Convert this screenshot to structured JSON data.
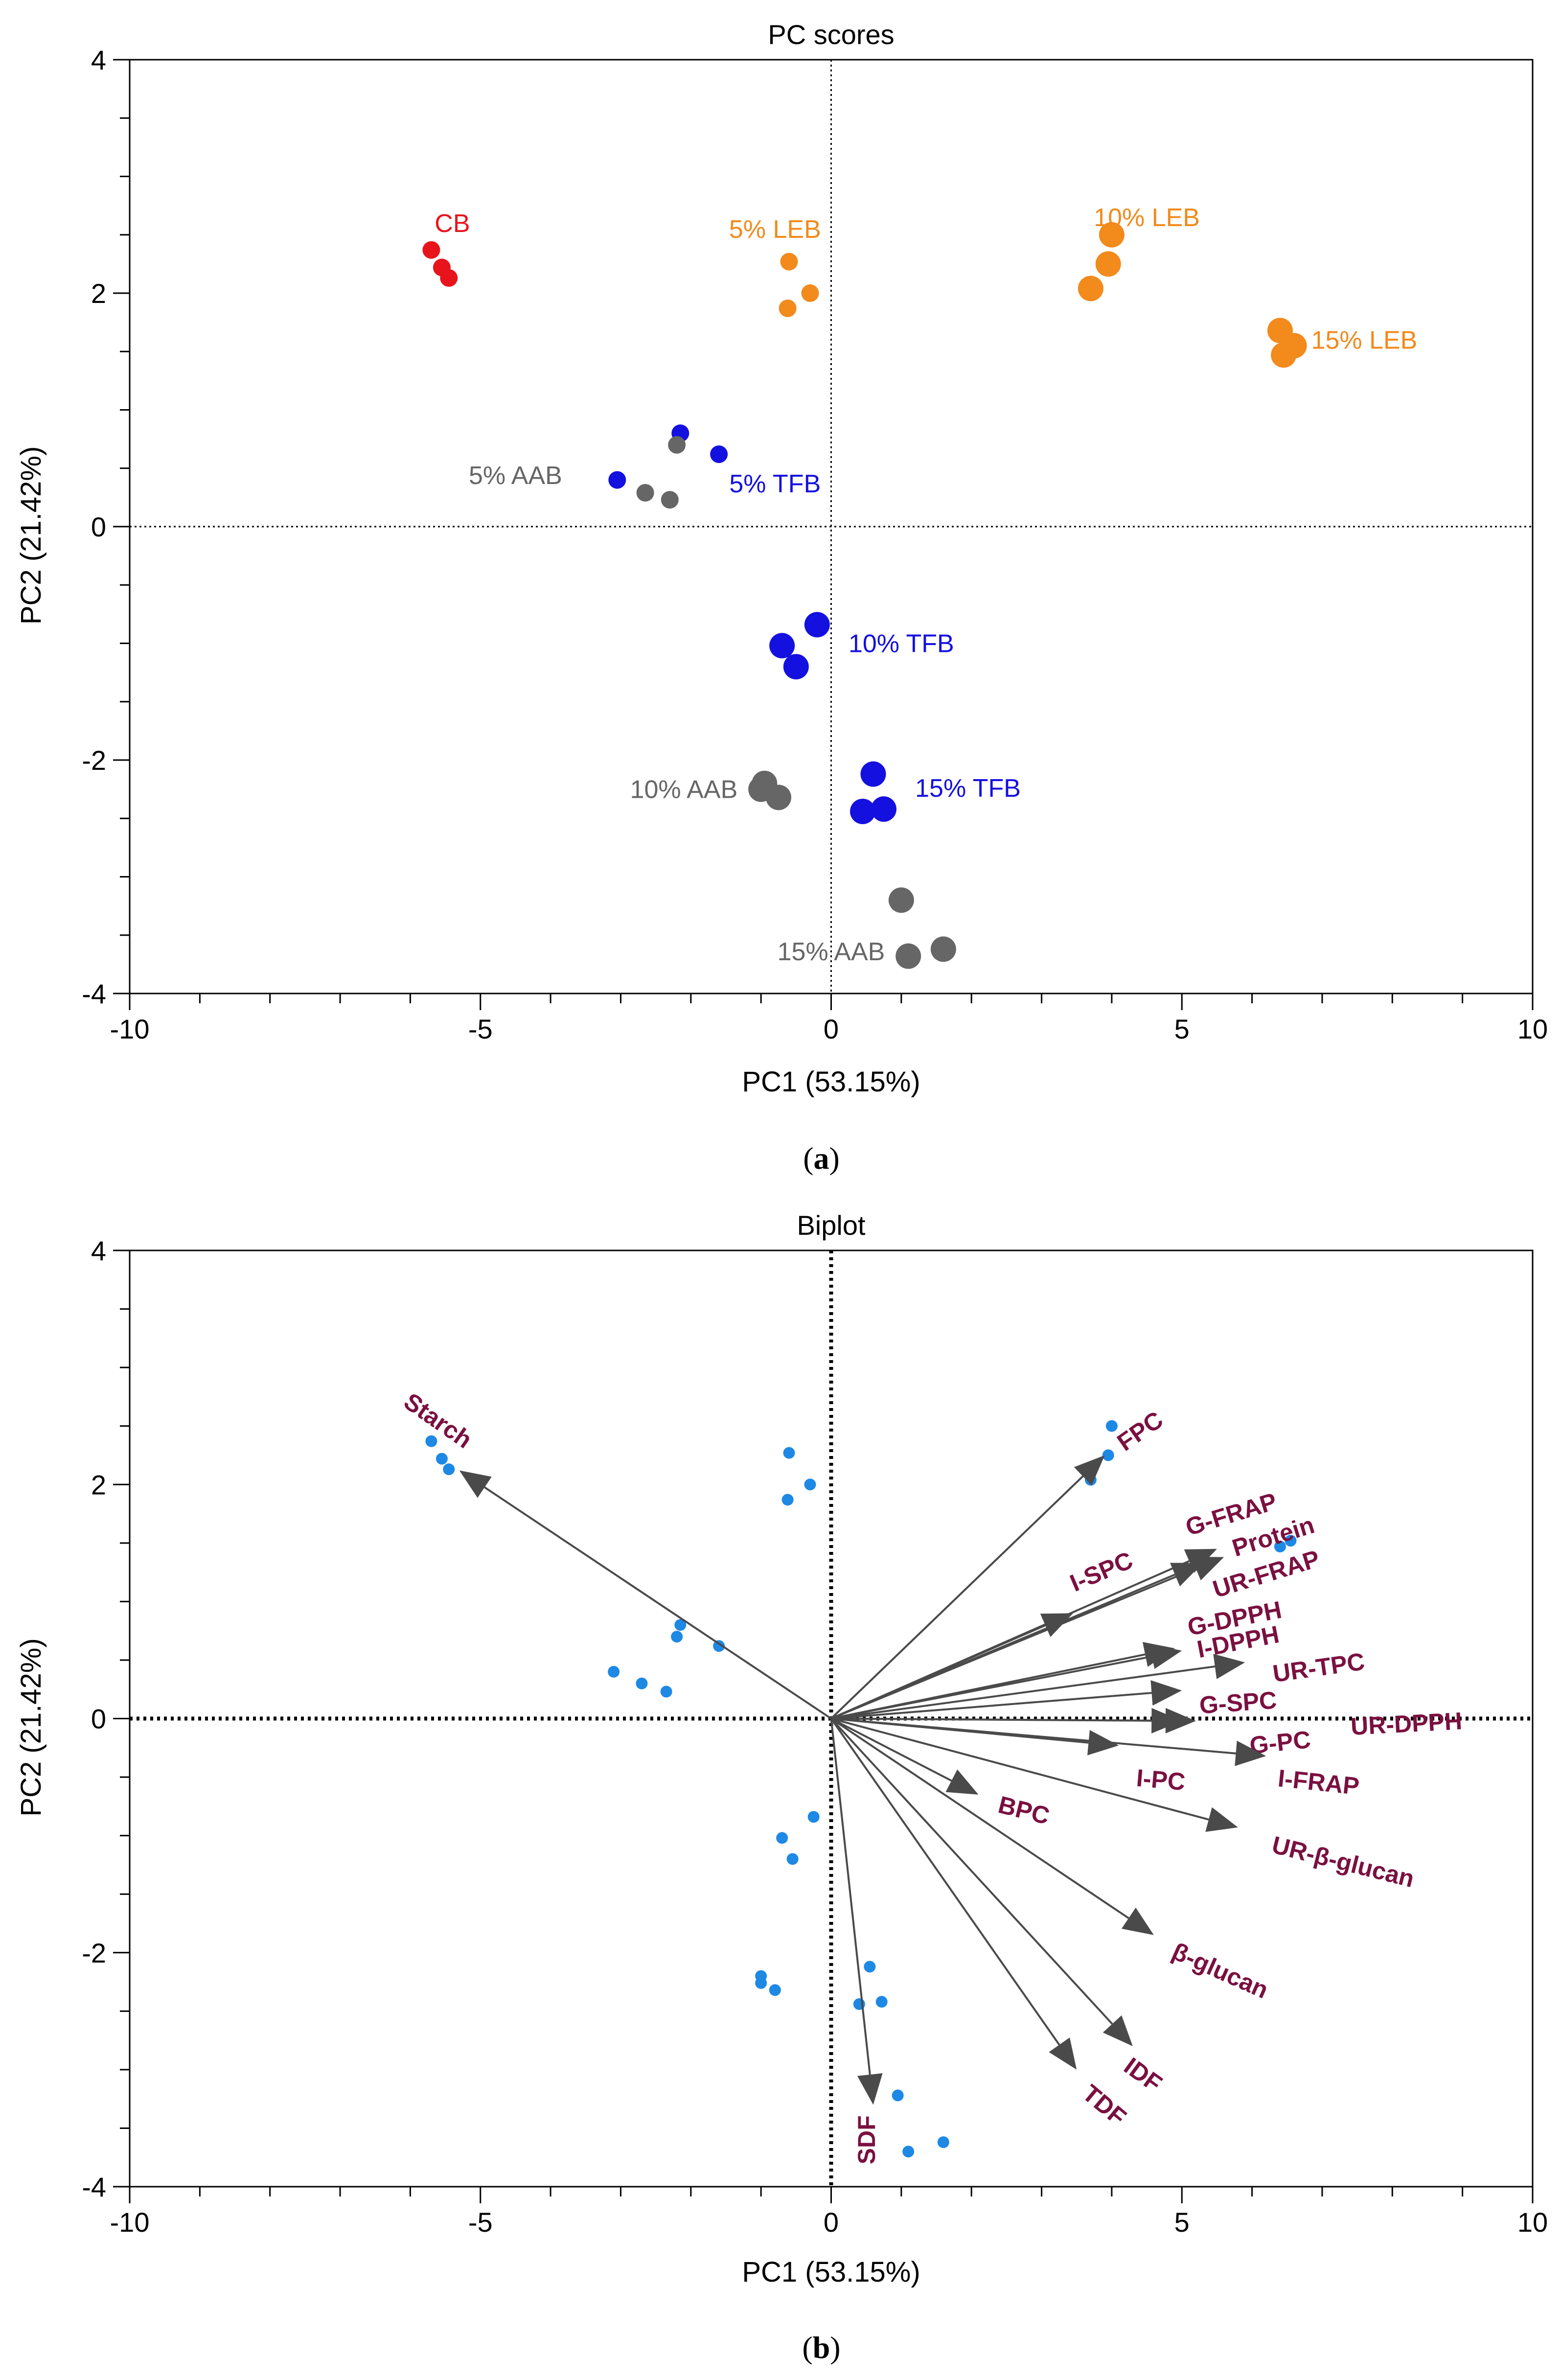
{
  "chart_data": [
    {
      "type": "scatter",
      "panel_label": "(a)",
      "panel_label_parts": [
        "(",
        "a",
        ")"
      ],
      "title": "PC scores",
      "xlabel": "PC1 (53.15%)",
      "ylabel": "PC2 (21.42%)",
      "xlim": [
        -10,
        10
      ],
      "ylim": [
        -4,
        4
      ],
      "x_ticks": [
        -10,
        -5,
        0,
        5,
        10
      ],
      "y_ticks": [
        -4,
        -2,
        0,
        2,
        4
      ],
      "x_tick_labels": [
        "-10",
        "-5",
        "0",
        "5",
        "10"
      ],
      "y_tick_labels": [
        "-4",
        "-2",
        "0",
        "2",
        "4"
      ],
      "reference_lines": {
        "x": 0,
        "y": 0,
        "style": "dotted"
      },
      "groups": [
        {
          "name": "CB",
          "color": "#e8141c",
          "marker_size": "small",
          "label_anchor": [
            -5.4,
            2.6
          ],
          "points": [
            [
              -5.7,
              2.37
            ],
            [
              -5.55,
              2.22
            ],
            [
              -5.45,
              2.13
            ]
          ]
        },
        {
          "name": "5% LEB",
          "color": "#f28a1c",
          "marker_size": "small",
          "label_anchor": [
            -0.8,
            2.55
          ],
          "points": [
            [
              -0.6,
              2.27
            ],
            [
              -0.3,
              2.0
            ],
            [
              -0.62,
              1.87
            ]
          ]
        },
        {
          "name": "10% LEB",
          "color": "#f28a1c",
          "marker_size": "large",
          "label_anchor": [
            4.5,
            2.65
          ],
          "points": [
            [
              4.0,
              2.5
            ],
            [
              3.95,
              2.25
            ],
            [
              3.7,
              2.04
            ]
          ]
        },
        {
          "name": "15% LEB",
          "color": "#f28a1c",
          "marker_size": "large",
          "label_anchor": [
            7.6,
            1.6
          ],
          "points": [
            [
              6.4,
              1.68
            ],
            [
              6.6,
              1.55
            ],
            [
              6.45,
              1.47
            ]
          ]
        },
        {
          "name": "5% TFB",
          "color": "#1410e0",
          "marker_size": "small",
          "label_anchor": [
            -0.8,
            0.37
          ],
          "points": [
            [
              -2.15,
              0.8
            ],
            [
              -1.6,
              0.62
            ],
            [
              -3.05,
              0.4
            ]
          ]
        },
        {
          "name": "5% AAB",
          "color": "#666666",
          "marker_size": "small",
          "label_anchor": [
            -4.5,
            0.44
          ],
          "points": [
            [
              -2.2,
              0.7
            ],
            [
              -2.65,
              0.29
            ],
            [
              -2.3,
              0.23
            ]
          ]
        },
        {
          "name": "10% TFB",
          "color": "#1410e0",
          "marker_size": "large",
          "label_anchor": [
            1.0,
            -1.0
          ],
          "points": [
            [
              -0.2,
              -0.84
            ],
            [
              -0.7,
              -1.02
            ],
            [
              -0.5,
              -1.2
            ]
          ]
        },
        {
          "name": "10% AAB",
          "color": "#666666",
          "marker_size": "large",
          "label_anchor": [
            -2.1,
            -2.25
          ],
          "points": [
            [
              -0.95,
              -2.2
            ],
            [
              -1.0,
              -2.25
            ],
            [
              -0.75,
              -2.32
            ]
          ]
        },
        {
          "name": "15% TFB",
          "color": "#1410e0",
          "marker_size": "large",
          "label_anchor": [
            1.95,
            -2.24
          ],
          "points": [
            [
              0.6,
              -2.12
            ],
            [
              0.45,
              -2.44
            ],
            [
              0.75,
              -2.42
            ]
          ]
        },
        {
          "name": "15% AAB",
          "color": "#666666",
          "marker_size": "large",
          "label_anchor": [
            0.0,
            -3.64
          ],
          "points": [
            [
              1.0,
              -3.2
            ],
            [
              1.6,
              -3.62
            ],
            [
              1.1,
              -3.68
            ]
          ]
        }
      ]
    },
    {
      "type": "scatter",
      "subtype": "biplot",
      "panel_label": "(b)",
      "panel_label_parts": [
        "(",
        "b",
        ")"
      ],
      "title": "Biplot",
      "xlabel": "PC1 (53.15%)",
      "ylabel": "PC2 (21.42%)",
      "xlim": [
        -10,
        10
      ],
      "ylim": [
        -4,
        4
      ],
      "x_ticks": [
        -10,
        -5,
        0,
        5,
        10
      ],
      "y_ticks": [
        -4,
        -2,
        0,
        2,
        4
      ],
      "x_tick_labels": [
        "-10",
        "-5",
        "0",
        "5",
        "10"
      ],
      "y_tick_labels": [
        "-4",
        "-2",
        "0",
        "2",
        "4"
      ],
      "reference_lines": {
        "x": 0,
        "y": 0,
        "style": "dotted"
      },
      "point_color": "#1e88e5",
      "loading_label_color": "#7a1040",
      "arrow_color": "#4a4a4a",
      "points": [
        [
          -5.7,
          2.37
        ],
        [
          -5.55,
          2.22
        ],
        [
          -5.45,
          2.13
        ],
        [
          -0.6,
          2.27
        ],
        [
          -0.3,
          2.0
        ],
        [
          -0.62,
          1.87
        ],
        [
          4.0,
          2.5
        ],
        [
          3.95,
          2.25
        ],
        [
          3.7,
          2.04
        ],
        [
          6.4,
          1.47
        ],
        [
          6.55,
          1.52
        ],
        [
          -2.15,
          0.8
        ],
        [
          -2.2,
          0.7
        ],
        [
          -1.6,
          0.62
        ],
        [
          -3.1,
          0.4
        ],
        [
          -2.7,
          0.3
        ],
        [
          -2.35,
          0.23
        ],
        [
          -0.25,
          -0.84
        ],
        [
          -0.7,
          -1.02
        ],
        [
          -0.55,
          -1.2
        ],
        [
          -1.0,
          -2.2
        ],
        [
          -1.0,
          -2.26
        ],
        [
          -0.8,
          -2.32
        ],
        [
          0.55,
          -2.12
        ],
        [
          0.4,
          -2.44
        ],
        [
          0.72,
          -2.42
        ],
        [
          0.95,
          -3.22
        ],
        [
          1.6,
          -3.62
        ],
        [
          1.1,
          -3.7
        ]
      ],
      "loadings": [
        {
          "name": "Starch",
          "x": -5.3,
          "y": 2.12,
          "label_anchor": [
            -5.6,
            2.55
          ],
          "label_angle": 35
        },
        {
          "name": "FPC",
          "x": 3.9,
          "y": 2.25,
          "label_anchor": [
            4.4,
            2.46
          ],
          "label_angle": -35
        },
        {
          "name": "G-FRAP",
          "x": 5.5,
          "y": 1.45,
          "label_anchor": [
            5.7,
            1.75
          ],
          "label_angle": -17
        },
        {
          "name": "Protein",
          "x": 5.6,
          "y": 1.38,
          "label_anchor": [
            6.3,
            1.56
          ],
          "label_angle": -17
        },
        {
          "name": "UR-FRAP",
          "x": 5.3,
          "y": 1.33,
          "label_anchor": [
            6.2,
            1.24
          ],
          "label_angle": -17
        },
        {
          "name": "I-SPC",
          "x": 3.45,
          "y": 0.9,
          "label_anchor": [
            3.85,
            1.26
          ],
          "label_angle": -23
        },
        {
          "name": "G-DPPH",
          "x": 4.9,
          "y": 0.6,
          "label_anchor": [
            5.75,
            0.86
          ],
          "label_angle": -11
        },
        {
          "name": "I-DPPH",
          "x": 5.0,
          "y": 0.58,
          "label_anchor": [
            5.8,
            0.66
          ],
          "label_angle": -11
        },
        {
          "name": "UR-TPC",
          "x": 5.9,
          "y": 0.48,
          "label_anchor": [
            6.95,
            0.44
          ],
          "label_angle": -8
        },
        {
          "name": "G-SPC",
          "x": 5.0,
          "y": 0.24,
          "label_anchor": [
            5.8,
            0.14
          ],
          "label_angle": -4
        },
        {
          "name": "UR-DPPH",
          "x": 5.2,
          "y": -0.02,
          "label_anchor": [
            8.2,
            -0.04
          ],
          "label_angle": -3
        },
        {
          "name": "G-PC",
          "x": 5.0,
          "y": -0.02,
          "label_anchor": [
            6.4,
            -0.2
          ],
          "label_angle": -6
        },
        {
          "name": "I-PC",
          "x": 4.1,
          "y": -0.23,
          "label_anchor": [
            4.7,
            -0.52
          ],
          "label_angle": 5
        },
        {
          "name": "I-FRAP",
          "x": 6.2,
          "y": -0.32,
          "label_anchor": [
            6.95,
            -0.54
          ],
          "label_angle": 6
        },
        {
          "name": "BPC",
          "x": 2.1,
          "y": -0.65,
          "label_anchor": [
            2.75,
            -0.78
          ],
          "label_angle": 14
        },
        {
          "name": "UR-β-glucan",
          "x": 5.8,
          "y": -0.93,
          "label_anchor": [
            7.3,
            -1.22
          ],
          "label_angle": 14
        },
        {
          "name": "β-glucan",
          "x": 4.6,
          "y": -1.85,
          "label_anchor": [
            5.55,
            -2.15
          ],
          "label_angle": 24
        },
        {
          "name": "IDF",
          "x": 4.3,
          "y": -2.8,
          "label_anchor": [
            4.45,
            -3.04
          ],
          "label_angle": 36
        },
        {
          "name": "TDF",
          "x": 3.5,
          "y": -3.0,
          "label_anchor": [
            3.9,
            -3.3
          ],
          "label_angle": 40
        },
        {
          "name": "SDF",
          "x": 0.6,
          "y": -3.3,
          "label_anchor": [
            0.5,
            -3.6
          ],
          "label_angle": -90
        }
      ]
    }
  ]
}
